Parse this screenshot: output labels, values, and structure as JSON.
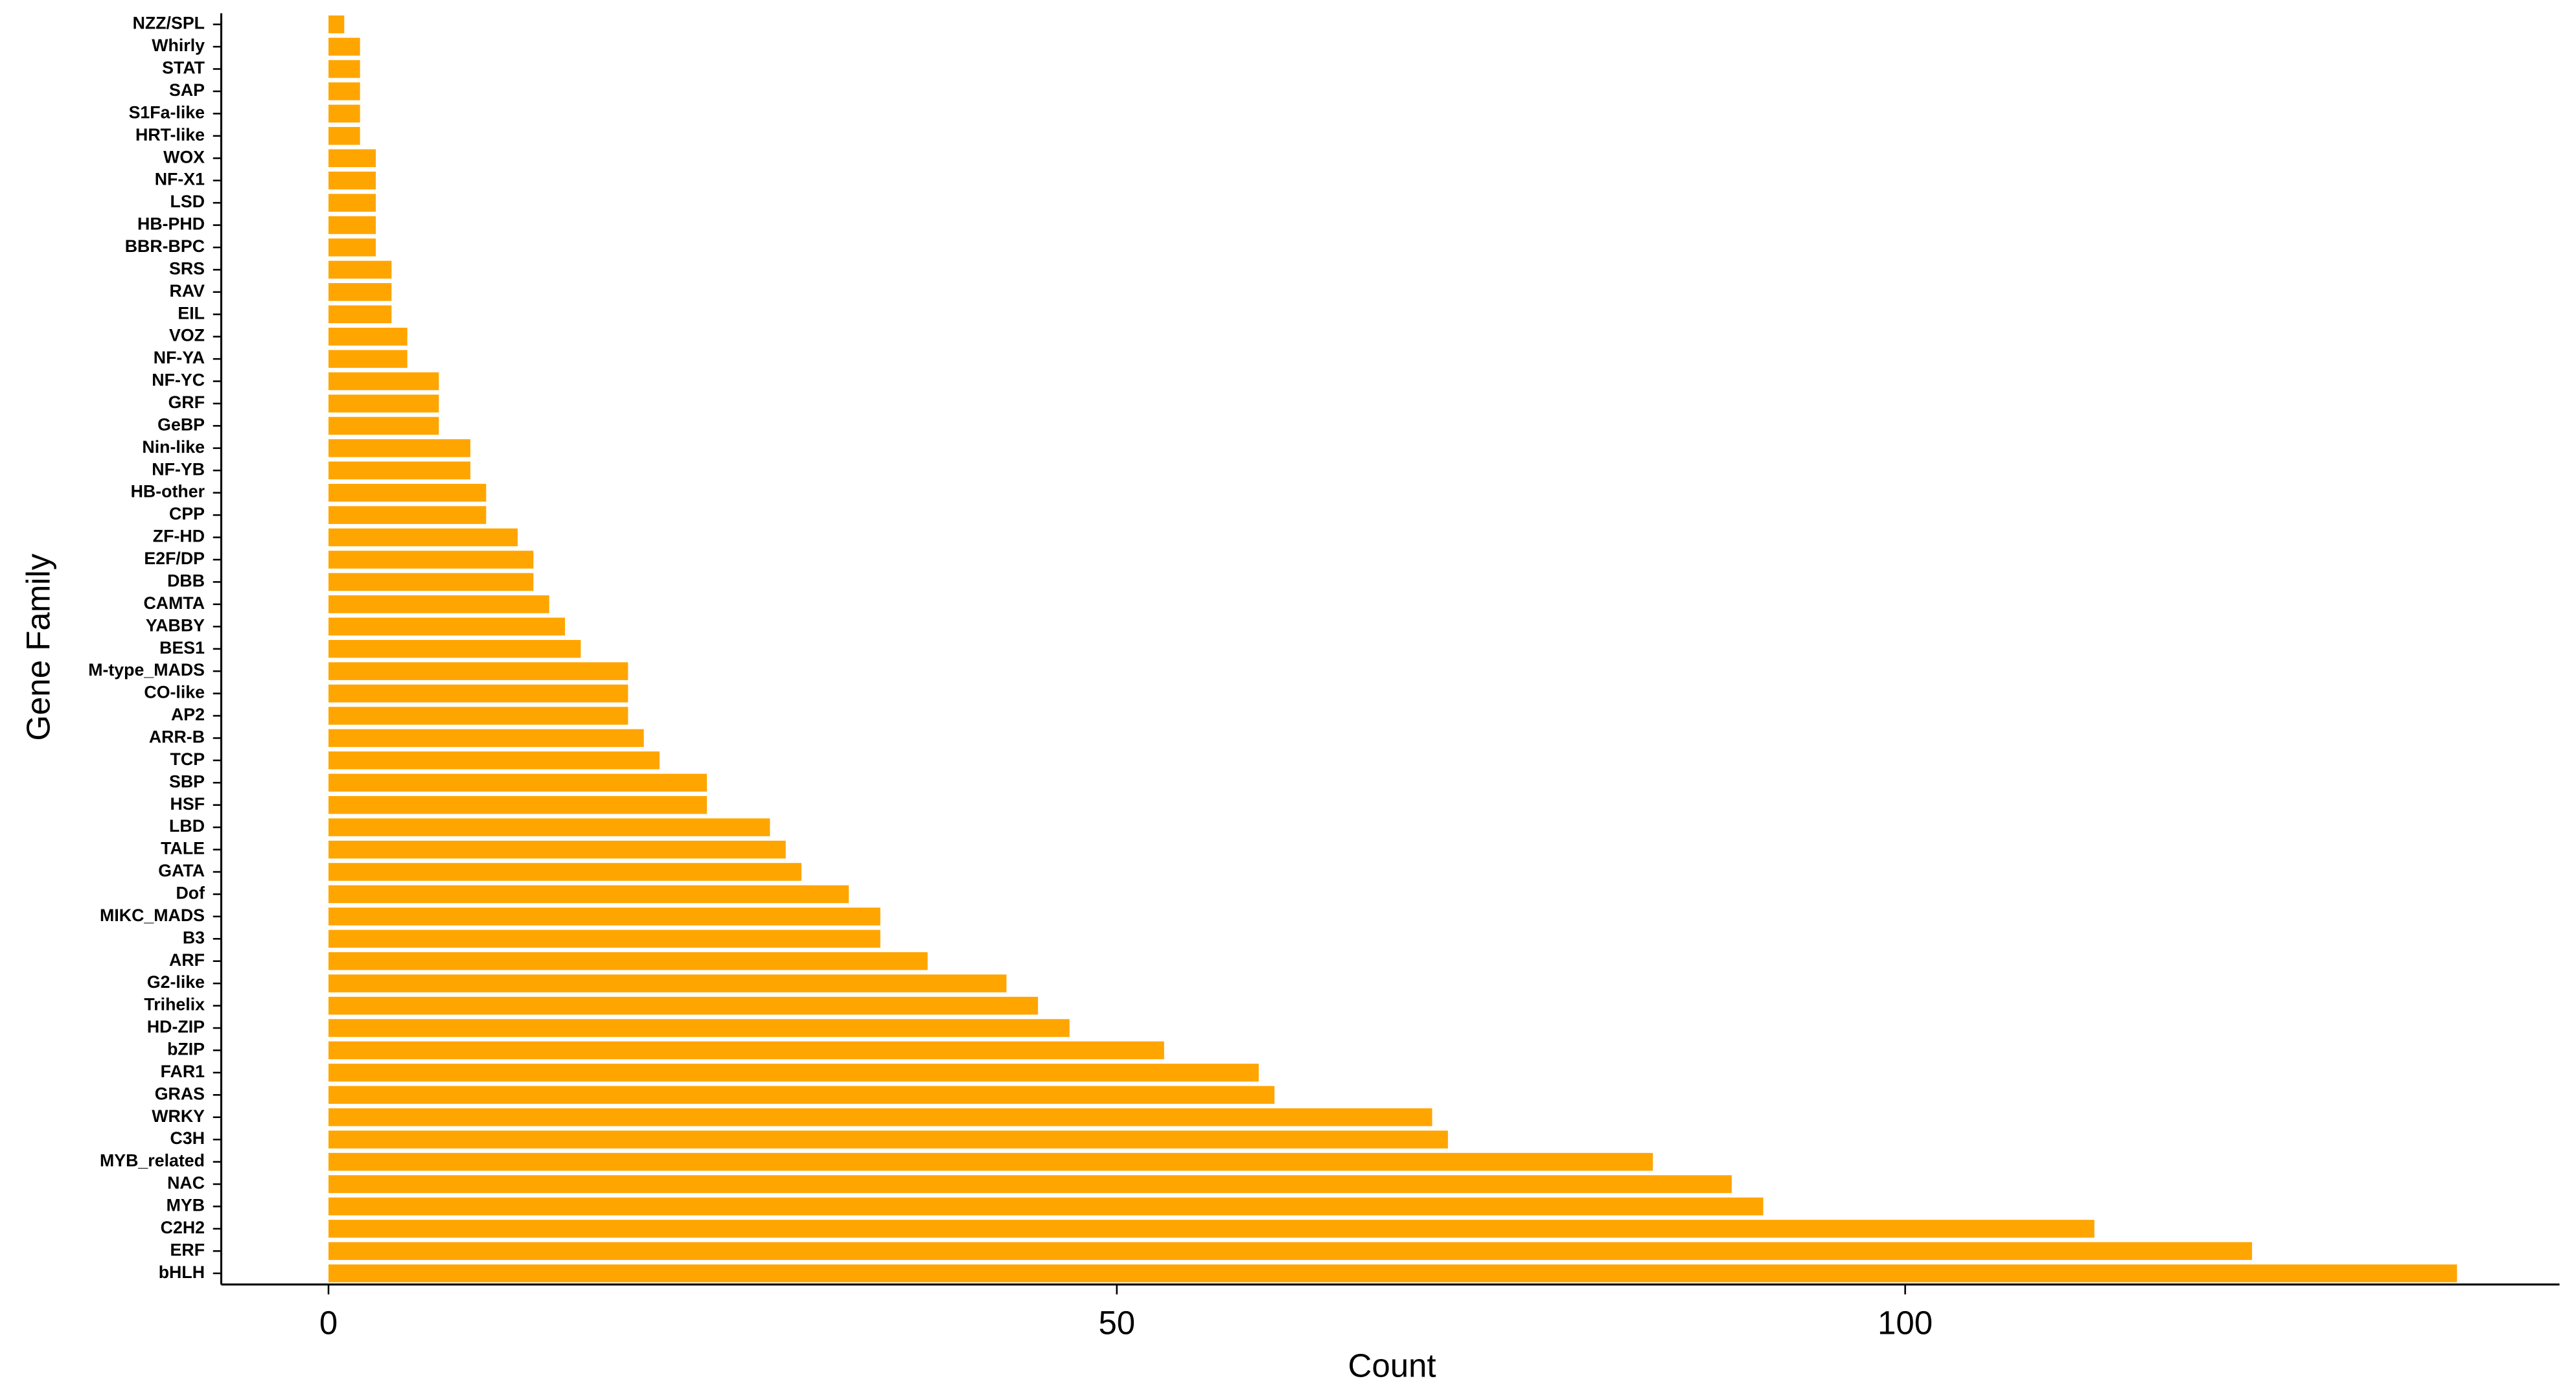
{
  "chart_data": {
    "type": "bar",
    "orientation": "horizontal",
    "x_label": "Count",
    "y_label": "Gene Family",
    "categories": [
      "NZZ/SPL",
      "Whirly",
      "STAT",
      "SAP",
      "S1Fa-like",
      "HRT-like",
      "WOX",
      "NF-X1",
      "LSD",
      "HB-PHD",
      "BBR-BPC",
      "SRS",
      "RAV",
      "EIL",
      "VOZ",
      "NF-YA",
      "NF-YC",
      "GRF",
      "GeBP",
      "Nin-like",
      "NF-YB",
      "HB-other",
      "CPP",
      "ZF-HD",
      "E2F/DP",
      "DBB",
      "CAMTA",
      "YABBY",
      "BES1",
      "M-type_MADS",
      "CO-like",
      "AP2",
      "ARR-B",
      "TCP",
      "SBP",
      "HSF",
      "LBD",
      "TALE",
      "GATA",
      "Dof",
      "MIKC_MADS",
      "B3",
      "ARF",
      "G2-like",
      "Trihelix",
      "HD-ZIP",
      "bZIP",
      "FAR1",
      "GRAS",
      "WRKY",
      "C3H",
      "MYB_related",
      "NAC",
      "MYB",
      "C2H2",
      "ERF",
      "bHLH"
    ],
    "values": [
      1,
      2,
      2,
      2,
      2,
      2,
      3,
      3,
      3,
      3,
      3,
      4,
      4,
      4,
      5,
      5,
      7,
      7,
      7,
      9,
      9,
      10,
      10,
      12,
      13,
      13,
      14,
      15,
      16,
      19,
      19,
      19,
      20,
      21,
      24,
      24,
      28,
      29,
      30,
      33,
      35,
      35,
      38,
      43,
      45,
      47,
      53,
      59,
      60,
      70,
      71,
      84,
      89,
      91,
      112,
      122,
      135
    ],
    "color": "#FFA500",
    "xlim": [
      -6.8,
      141.5
    ],
    "xticks": [
      0,
      50,
      100
    ],
    "grid": false
  }
}
